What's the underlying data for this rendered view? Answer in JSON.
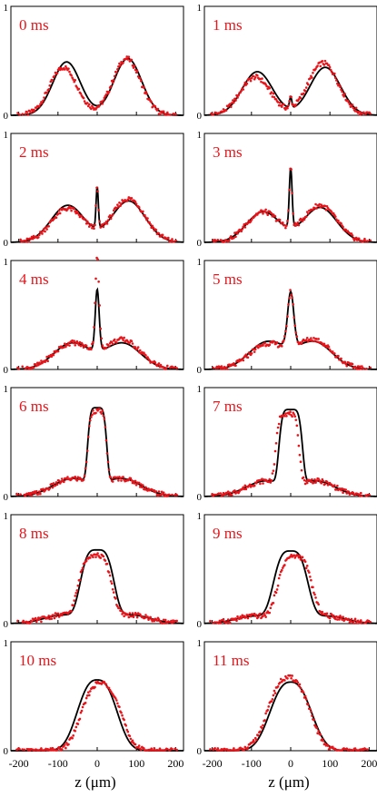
{
  "chart_data": [
    {
      "type": "line",
      "label": "0 ms",
      "xlim": [
        -220,
        220
      ],
      "ylim": [
        0,
        1
      ],
      "peaks": [
        {
          "c": -78,
          "h": 0.49,
          "w": 50,
          "p": 2.0
        },
        {
          "c": 78,
          "h": 0.52,
          "w": 50,
          "p": 2.0
        }
      ],
      "exp_shift": [
        {
          "c": -78,
          "dh": -0.05,
          "dc": -8
        },
        {
          "c": 78,
          "dh": 0.0,
          "dc": -3
        }
      ]
    },
    {
      "type": "line",
      "label": "1 ms",
      "xlim": [
        -220,
        220
      ],
      "ylim": [
        0,
        1
      ],
      "peaks": [
        {
          "c": -85,
          "h": 0.4,
          "w": 55,
          "p": 2.0
        },
        {
          "c": 88,
          "h": 0.44,
          "w": 55,
          "p": 2.0
        },
        {
          "c": 0,
          "h": 0.1,
          "w": 4,
          "p": 2.0
        }
      ],
      "exp_shift": [
        {
          "c": -85,
          "dh": -0.05,
          "dc": -5
        },
        {
          "c": 88,
          "dh": 0.04,
          "dc": -5
        }
      ]
    },
    {
      "type": "line",
      "label": "2 ms",
      "xlim": [
        -220,
        220
      ],
      "ylim": [
        0,
        1
      ],
      "peaks": [
        {
          "c": -75,
          "h": 0.34,
          "w": 60,
          "p": 2.0
        },
        {
          "c": 80,
          "h": 0.38,
          "w": 60,
          "p": 2.0
        },
        {
          "c": 0,
          "h": 0.38,
          "w": 4,
          "p": 2.0
        }
      ],
      "exp_shift": [
        {
          "c": -75,
          "dh": -0.03,
          "dc": 0
        },
        {
          "c": 80,
          "dh": 0.02,
          "dc": 0
        }
      ]
    },
    {
      "type": "line",
      "label": "3 ms",
      "xlim": [
        -220,
        220
      ],
      "ylim": [
        0,
        1
      ],
      "peaks": [
        {
          "c": -70,
          "h": 0.28,
          "w": 60,
          "p": 2.0
        },
        {
          "c": 75,
          "h": 0.32,
          "w": 60,
          "p": 2.0
        },
        {
          "c": 0,
          "h": 0.55,
          "w": 5,
          "p": 2.0
        }
      ],
      "exp_shift": [
        {
          "c": -70,
          "dh": 0.0,
          "dc": 0
        },
        {
          "c": 75,
          "dh": 0.02,
          "dc": 0
        }
      ]
    },
    {
      "type": "line",
      "label": "4 ms",
      "xlim": [
        -220,
        220
      ],
      "ylim": [
        0,
        1
      ],
      "peaks": [
        {
          "c": -65,
          "h": 0.24,
          "w": 65,
          "p": 2.0
        },
        {
          "c": 65,
          "h": 0.24,
          "w": 65,
          "p": 2.0
        },
        {
          "c": 0,
          "h": 0.56,
          "w": 7,
          "p": 2.0
        }
      ],
      "exp_shift": [
        {
          "c": 0,
          "dh": 0.28,
          "dc": 0
        },
        {
          "c": 70,
          "dh": 0.03,
          "dc": 0
        }
      ]
    },
    {
      "type": "line",
      "label": "5 ms",
      "xlim": [
        -220,
        220
      ],
      "ylim": [
        0,
        1
      ],
      "peaks": [
        {
          "c": -60,
          "h": 0.25,
          "w": 65,
          "p": 2.0
        },
        {
          "c": 60,
          "h": 0.25,
          "w": 65,
          "p": 2.0
        },
        {
          "c": 0,
          "h": 0.5,
          "w": 11,
          "p": 2.0
        }
      ],
      "exp_shift": [
        {
          "c": -60,
          "dh": -0.02,
          "dc": 0
        },
        {
          "c": 80,
          "dh": 0.02,
          "dc": 0
        }
      ]
    },
    {
      "type": "line",
      "label": "6 ms",
      "xlim": [
        -220,
        220
      ],
      "ylim": [
        0,
        1
      ],
      "peaks": [
        {
          "c": 0,
          "h": 0.68,
          "w": 26,
          "p": 5.0
        },
        {
          "c": -65,
          "h": 0.16,
          "w": 70,
          "p": 2.0
        },
        {
          "c": 65,
          "h": 0.16,
          "w": 70,
          "p": 2.0
        }
      ],
      "exp_shift": [
        {
          "c": 25,
          "dh": -0.03,
          "dc": 0
        }
      ]
    },
    {
      "type": "line",
      "label": "7 ms",
      "xlim": [
        -220,
        220
      ],
      "ylim": [
        0,
        1
      ],
      "peaks": [
        {
          "c": 0,
          "h": 0.68,
          "w": 32,
          "p": 5.0
        },
        {
          "c": -65,
          "h": 0.14,
          "w": 70,
          "p": 2.0
        },
        {
          "c": 65,
          "h": 0.14,
          "w": 70,
          "p": 2.0
        }
      ],
      "exp_shift": [
        {
          "c": -10,
          "dh": -0.04,
          "dc": -8
        }
      ]
    },
    {
      "type": "line",
      "label": "8 ms",
      "xlim": [
        -220,
        220
      ],
      "ylim": [
        0,
        1
      ],
      "peaks": [
        {
          "c": 0,
          "h": 0.64,
          "w": 48,
          "p": 3.5
        },
        {
          "c": -85,
          "h": 0.08,
          "w": 70,
          "p": 2.0
        },
        {
          "c": 85,
          "h": 0.08,
          "w": 70,
          "p": 2.0
        }
      ],
      "exp_shift": [
        {
          "c": -20,
          "dh": -0.05,
          "dc": -5
        }
      ]
    },
    {
      "type": "line",
      "label": "9 ms",
      "xlim": [
        -220,
        220
      ],
      "ylim": [
        0,
        1
      ],
      "peaks": [
        {
          "c": 0,
          "h": 0.64,
          "w": 50,
          "p": 3.2
        },
        {
          "c": -90,
          "h": 0.07,
          "w": 70,
          "p": 2.0
        },
        {
          "c": 90,
          "h": 0.07,
          "w": 70,
          "p": 2.0
        }
      ],
      "exp_shift": [
        {
          "c": 20,
          "dh": -0.05,
          "dc": 10
        }
      ]
    },
    {
      "type": "line",
      "label": "10 ms",
      "xlim": [
        -220,
        220
      ],
      "ylim": [
        0,
        1
      ],
      "peaks": [
        {
          "c": 0,
          "h": 0.65,
          "w": 62,
          "p": 2.6
        }
      ],
      "exp_shift": [
        {
          "c": 40,
          "dh": -0.03,
          "dc": 10
        }
      ]
    },
    {
      "type": "line",
      "label": "11 ms",
      "xlim": [
        -220,
        220
      ],
      "ylim": [
        0,
        1
      ],
      "peaks": [
        {
          "c": 0,
          "h": 0.63,
          "w": 66,
          "p": 2.5
        }
      ],
      "exp_shift": [
        {
          "c": -20,
          "dh": 0.04,
          "dc": -5
        }
      ]
    }
  ],
  "axes": {
    "x_ticks": [
      "-200",
      "-100",
      "0",
      "100",
      "200"
    ],
    "x_tick_values": [
      -200,
      -100,
      0,
      100,
      200
    ],
    "y_ticks": [
      "0",
      "1"
    ],
    "xlabel_left": "z (μm)",
    "xlabel_right": "z (μm)"
  },
  "colors": {
    "experiment": "#e8141a",
    "theory": "#000000",
    "label": "#e8141a",
    "frame": "#000000"
  }
}
